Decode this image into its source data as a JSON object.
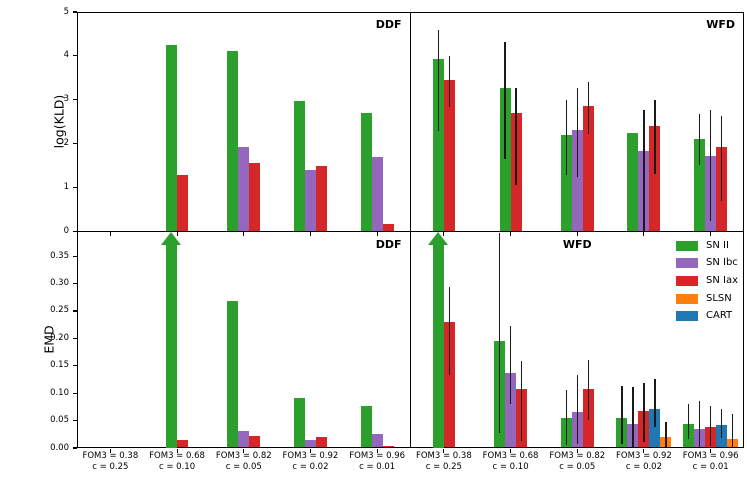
{
  "chart_data": {
    "type": "bar",
    "description": "2x2 grid of grouped bar charts comparing supernova classes across classification configurations, for DDF and WFD fields, using log(KLD) (top row) and EMD (bottom row) metrics. Green arrows mark off-scale bars. WFD panels include black error bars.",
    "categories": [
      {
        "line1": "FOM3 = 0.38",
        "line2": "c = 0.25"
      },
      {
        "line1": "FOM3 = 0.68",
        "line2": "c = 0.10"
      },
      {
        "line1": "FOM3 = 0.82",
        "line2": "c = 0.05"
      },
      {
        "line1": "FOM3 = 0.92",
        "line2": "c = 0.02"
      },
      {
        "line1": "FOM3 = 0.96",
        "line2": "c = 0.01"
      }
    ],
    "classes": {
      "SN II": "#2ca02c",
      "SN Ibc": "#9467bd",
      "SN Iax": "#d62728",
      "SLSN": "#ff7f0e",
      "CART": "#1f77b4"
    },
    "bar_order": [
      "SN II",
      "SN Ibc",
      "SN Iax",
      "CART",
      "SLSN"
    ],
    "legend_order": [
      "SN II",
      "SN Ibc",
      "SN Iax",
      "SLSN",
      "CART"
    ],
    "error_bar_color": "#1a1a1a",
    "panels": [
      {
        "id": "ddf-kld",
        "label": "DDF",
        "label_pos": "right",
        "ylabel": "log(KLD)",
        "ylim": [
          0,
          5
        ],
        "yticks": [
          0,
          1,
          2,
          3,
          4,
          5
        ],
        "ytick_decimals": 0,
        "groups": [
          [],
          [
            {
              "cls": "SN II",
              "value": 4.25
            },
            {
              "cls": "SN Iax",
              "value": 1.28
            }
          ],
          [
            {
              "cls": "SN II",
              "value": 4.11
            },
            {
              "cls": "SN Ibc",
              "value": 1.93
            },
            {
              "cls": "SN Iax",
              "value": 1.57
            }
          ],
          [
            {
              "cls": "SN II",
              "value": 2.97
            },
            {
              "cls": "SN Ibc",
              "value": 1.4
            },
            {
              "cls": "SN Iax",
              "value": 1.5
            }
          ],
          [
            {
              "cls": "SN II",
              "value": 2.7
            },
            {
              "cls": "SN Ibc",
              "value": 1.7
            },
            {
              "cls": "SN Iax",
              "value": 0.17
            }
          ]
        ]
      },
      {
        "id": "wfd-kld",
        "label": "WFD",
        "label_pos": "right",
        "ylabel": "",
        "ylim": [
          0,
          5
        ],
        "yticks": [],
        "ytick_decimals": 0,
        "groups": [
          [
            {
              "cls": "SN II",
              "value": 3.92,
              "err": [
                2.3,
                4.6
              ]
            },
            {
              "cls": "SN Iax",
              "value": 3.46,
              "err": [
                2.83,
                4.0
              ]
            }
          ],
          [
            {
              "cls": "SN II",
              "value": 3.26,
              "err": [
                1.66,
                4.31
              ]
            },
            {
              "cls": "SN Iax",
              "value": 2.7,
              "err": [
                1.07,
                3.26
              ]
            }
          ],
          [
            {
              "cls": "SN II",
              "value": 2.2,
              "err": [
                1.29,
                3.0
              ]
            },
            {
              "cls": "SN Ibc",
              "value": 2.32,
              "err": [
                1.23,
                3.28
              ]
            },
            {
              "cls": "SN Iax",
              "value": 2.87,
              "err": [
                2.22,
                3.41
              ]
            }
          ],
          [
            {
              "cls": "SN II",
              "value": 2.24
            },
            {
              "cls": "SN Ibc",
              "value": 1.83,
              "err": [
                0.0,
                2.76
              ]
            },
            {
              "cls": "SN Iax",
              "value": 2.41,
              "err": [
                1.3,
                3.0
              ]
            }
          ],
          [
            {
              "cls": "SN II",
              "value": 2.11,
              "err": [
                1.51,
                2.68
              ]
            },
            {
              "cls": "SN Ibc",
              "value": 1.71,
              "err": [
                0.25,
                2.76
              ]
            },
            {
              "cls": "SN Iax",
              "value": 1.93,
              "err": [
                0.69,
                2.62
              ]
            }
          ]
        ]
      },
      {
        "id": "ddf-emd",
        "label": "DDF",
        "label_pos": "right",
        "ylabel": "EMD",
        "ylim": [
          0,
          0.395
        ],
        "yticks": [
          0,
          0.05,
          0.1,
          0.15,
          0.2,
          0.25,
          0.3,
          0.35
        ],
        "ytick_decimals": 2,
        "groups": [
          [],
          [
            {
              "cls": "SN II",
              "value": null,
              "arrow": true
            },
            {
              "cls": "SN Iax",
              "value": 0.014
            }
          ],
          [
            {
              "cls": "SN II",
              "value": 0.268
            },
            {
              "cls": "SN Ibc",
              "value": 0.031
            },
            {
              "cls": "SN Iax",
              "value": 0.021
            }
          ],
          [
            {
              "cls": "SN II",
              "value": 0.092
            },
            {
              "cls": "SN Ibc",
              "value": 0.015
            },
            {
              "cls": "SN Iax",
              "value": 0.02
            }
          ],
          [
            {
              "cls": "SN II",
              "value": 0.076
            },
            {
              "cls": "SN Ibc",
              "value": 0.025
            },
            {
              "cls": "SN Iax",
              "value": 0.004
            }
          ]
        ]
      },
      {
        "id": "wfd-emd",
        "label": "WFD",
        "label_pos": "center",
        "ylabel": "",
        "ylim": [
          0,
          0.395
        ],
        "yticks": [],
        "ytick_decimals": 2,
        "has_legend": true,
        "groups": [
          [
            {
              "cls": "SN II",
              "value": null,
              "arrow": true
            },
            {
              "cls": "SN Iax",
              "value": 0.229,
              "err": [
                0.133,
                0.293
              ]
            }
          ],
          [
            {
              "cls": "SN II",
              "value": 0.195,
              "err": [
                0.028,
                0.393
              ]
            },
            {
              "cls": "SN Ibc",
              "value": 0.136,
              "err": [
                0.081,
                0.222
              ]
            },
            {
              "cls": "SN Iax",
              "value": 0.108,
              "err": [
                0.012,
                0.158
              ]
            }
          ],
          [
            {
              "cls": "SN II",
              "value": 0.055,
              "err": [
                0.005,
                0.105
              ]
            },
            {
              "cls": "SN Ibc",
              "value": 0.065,
              "err": [
                0.008,
                0.133
              ]
            },
            {
              "cls": "SN Iax",
              "value": 0.107,
              "err": [
                0.051,
                0.161
              ]
            }
          ],
          [
            {
              "cls": "SN II",
              "value": 0.054,
              "err": [
                0.008,
                0.113
              ]
            },
            {
              "cls": "SN Ibc",
              "value": 0.043,
              "err": [
                0.0,
                0.111
              ]
            },
            {
              "cls": "SN Iax",
              "value": 0.068,
              "err": [
                0.011,
                0.119
              ]
            },
            {
              "cls": "CART",
              "value": 0.071,
              "err": [
                0.039,
                0.125
              ]
            },
            {
              "cls": "SLSN",
              "value": 0.02,
              "err": [
                0.0,
                0.048
              ]
            }
          ],
          [
            {
              "cls": "SN II",
              "value": 0.043,
              "err": [
                0.017,
                0.08
              ]
            },
            {
              "cls": "SN Ibc",
              "value": 0.035,
              "err": [
                0.0,
                0.085
              ]
            },
            {
              "cls": "SN Iax",
              "value": 0.038,
              "err": [
                0.003,
                0.077
              ]
            },
            {
              "cls": "CART",
              "value": 0.042,
              "err": [
                0.019,
                0.071
              ]
            },
            {
              "cls": "SLSN",
              "value": 0.017,
              "err": [
                0.0,
                0.062
              ]
            }
          ]
        ]
      }
    ]
  }
}
